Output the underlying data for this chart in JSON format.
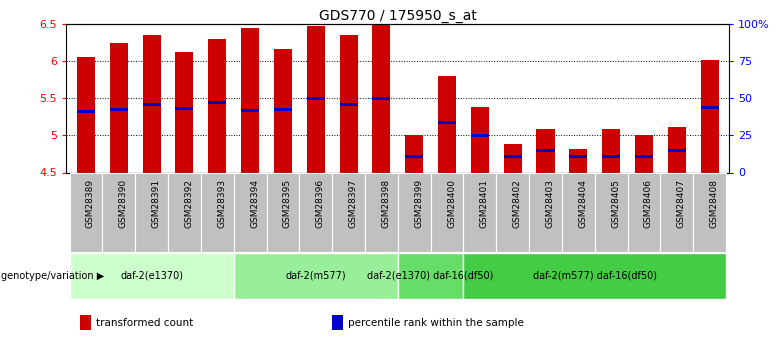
{
  "title": "GDS770 / 175950_s_at",
  "samples": [
    "GSM28389",
    "GSM28390",
    "GSM28391",
    "GSM28392",
    "GSM28393",
    "GSM28394",
    "GSM28395",
    "GSM28396",
    "GSM28397",
    "GSM28398",
    "GSM28399",
    "GSM28400",
    "GSM28401",
    "GSM28402",
    "GSM28403",
    "GSM28404",
    "GSM28405",
    "GSM28406",
    "GSM28407",
    "GSM28408"
  ],
  "transformed_count": [
    6.06,
    6.25,
    6.35,
    6.12,
    6.3,
    6.45,
    6.17,
    6.47,
    6.35,
    6.5,
    5.0,
    5.8,
    5.38,
    4.88,
    5.08,
    4.82,
    5.08,
    5.0,
    5.12,
    6.02
  ],
  "percentile_val": [
    5.32,
    5.35,
    5.42,
    5.36,
    5.45,
    5.34,
    5.35,
    5.5,
    5.42,
    5.5,
    4.72,
    5.18,
    5.0,
    4.72,
    4.8,
    4.72,
    4.72,
    4.72,
    4.8,
    5.38
  ],
  "ylim_left": [
    4.5,
    6.5
  ],
  "yticks_left": [
    4.5,
    5.0,
    5.5,
    6.0,
    6.5
  ],
  "ytick_labels_left": [
    "4.5",
    "5",
    "5.5",
    "6",
    "6.5"
  ],
  "ylim_right": [
    0,
    100
  ],
  "yticks_right": [
    0,
    25,
    50,
    75,
    100
  ],
  "yticklabels_right": [
    "0",
    "25",
    "50",
    "75",
    "100%"
  ],
  "bar_color": "#cc0000",
  "marker_color": "#0000cc",
  "gridlines": [
    5.0,
    5.5,
    6.0
  ],
  "groups": [
    {
      "label": "daf-2(e1370)",
      "start": 0,
      "end": 5,
      "color": "#ccffcc"
    },
    {
      "label": "daf-2(m577)",
      "start": 5,
      "end": 10,
      "color": "#99ee99"
    },
    {
      "label": "daf-2(e1370) daf-16(df50)",
      "start": 10,
      "end": 12,
      "color": "#66dd66"
    },
    {
      "label": "daf-2(m577) daf-16(df50)",
      "start": 12,
      "end": 20,
      "color": "#44cc44"
    }
  ],
  "genotype_label": "genotype/variation",
  "legend_items": [
    {
      "label": "transformed count",
      "color": "#cc0000"
    },
    {
      "label": "percentile rank within the sample",
      "color": "#0000cc"
    }
  ],
  "bar_width": 0.55,
  "xtick_bg_color": "#c0c0c0",
  "xtick_border_color": "#888888"
}
